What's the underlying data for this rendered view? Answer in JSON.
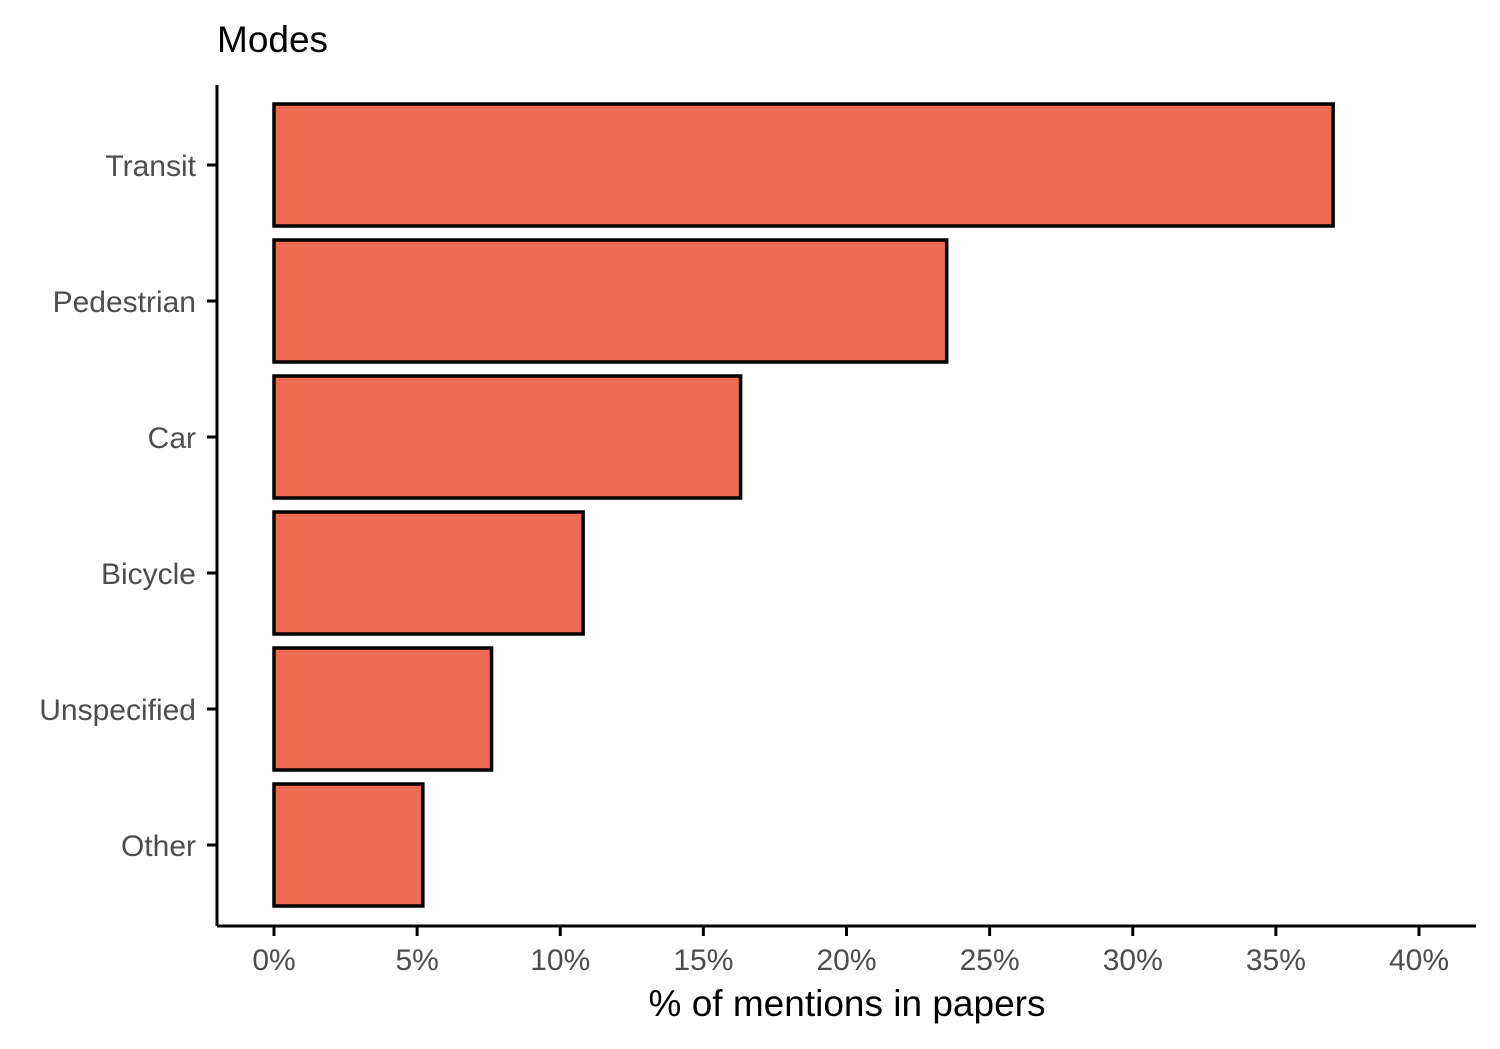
{
  "chart_data": {
    "type": "bar",
    "orientation": "horizontal",
    "title": "Modes",
    "xlabel": "% of mentions in papers",
    "ylabel": "",
    "categories": [
      "Transit",
      "Pedestrian",
      "Car",
      "Bicycle",
      "Unspecified",
      "Other"
    ],
    "values": [
      37.0,
      23.5,
      16.3,
      10.8,
      7.6,
      5.2
    ],
    "xlim": [
      0,
      40
    ],
    "x_ticks": [
      0,
      5,
      10,
      15,
      20,
      25,
      30,
      35,
      40
    ],
    "x_tick_labels": [
      "0%",
      "5%",
      "10%",
      "15%",
      "20%",
      "25%",
      "30%",
      "35%",
      "40%"
    ],
    "bar_color": "#EE6A50",
    "bar_outline_color": "#000000",
    "grid": false,
    "legend": "none"
  }
}
